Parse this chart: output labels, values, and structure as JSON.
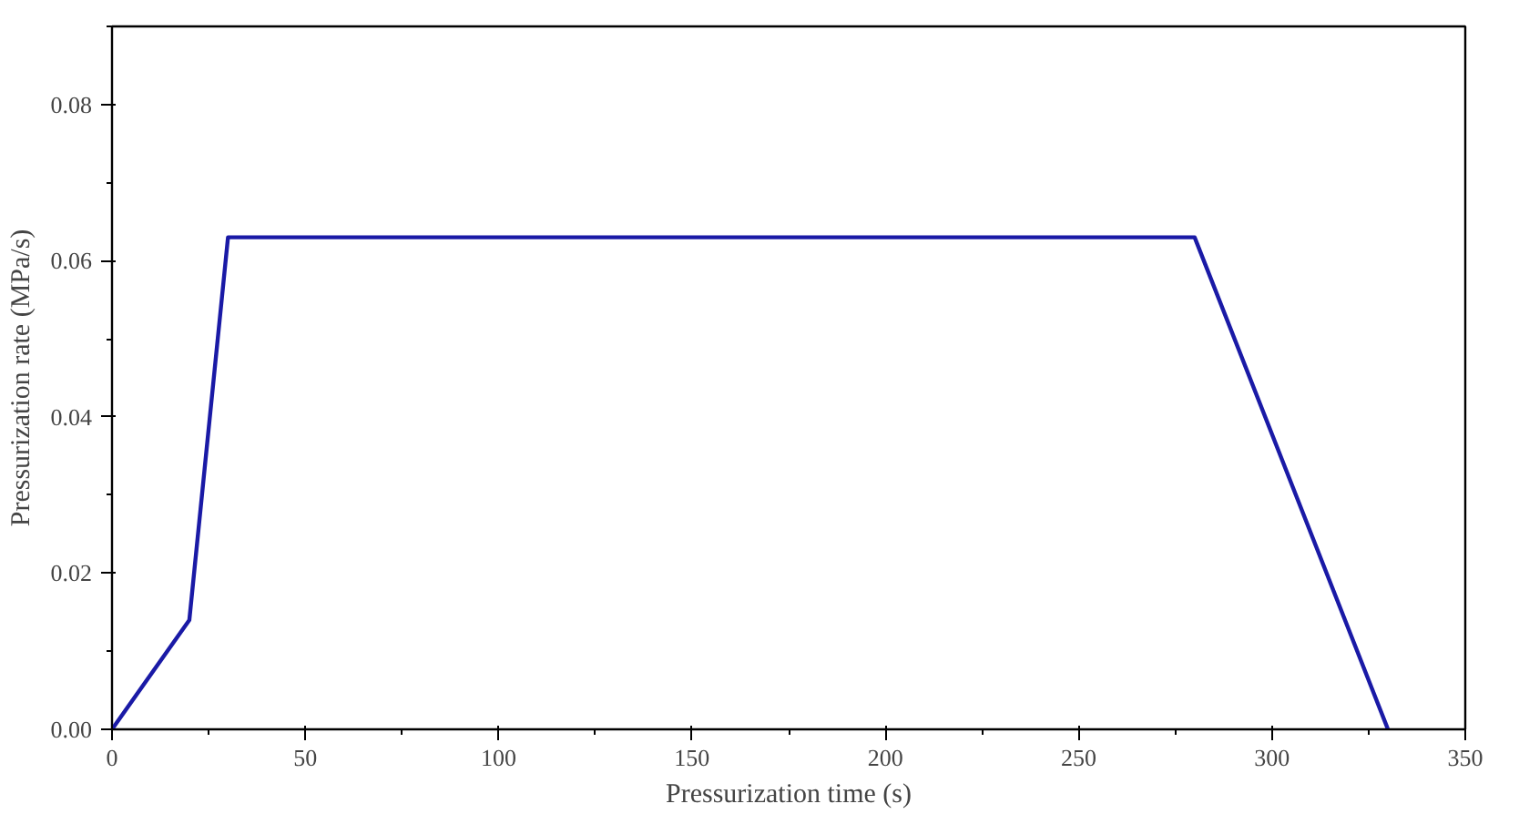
{
  "chart_data": {
    "type": "line",
    "xlabel": "Pressurization time (s)",
    "ylabel": "Pressurization rate (MPa/s)",
    "x": [
      0,
      20,
      30,
      280,
      330
    ],
    "series": [
      {
        "color": "#1a1aa6",
        "values": [
          0,
          0.014,
          0.063,
          0.063,
          0
        ]
      }
    ],
    "xlim": [
      0,
      350
    ],
    "ylim": [
      0,
      0.09
    ],
    "xticks": [
      0,
      50,
      100,
      150,
      200,
      250,
      300,
      350
    ],
    "yticks": [
      {
        "value": 0,
        "label": "0.00"
      },
      {
        "value": 0.02,
        "label": "0.02"
      },
      {
        "value": 0.04,
        "label": "0.04"
      },
      {
        "value": 0.06,
        "label": "0.06"
      },
      {
        "value": 0.08,
        "label": "0.08"
      }
    ],
    "grid": false,
    "marker": "none",
    "line_style": "solid"
  }
}
